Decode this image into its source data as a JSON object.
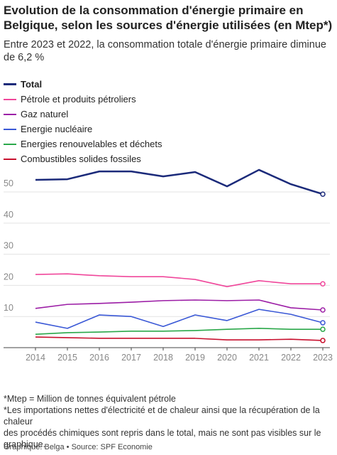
{
  "chart_data": {
    "type": "line",
    "title": "Evolution de la consommation d'énergie primaire en Belgique, selon les sources d'énergie utilisées (en Mtep*)",
    "subtitle": "Entre 2023 et 2022, la consommation totale d'énergie primaire diminue de 6,2 %",
    "x": [
      2014,
      2015,
      2016,
      2017,
      2018,
      2019,
      2020,
      2021,
      2022,
      2023
    ],
    "xlim": [
      2014,
      2023
    ],
    "xticks": [
      2014,
      2015,
      2016,
      2017,
      2018,
      2019,
      2020,
      2021,
      2022,
      2023
    ],
    "ylim": [
      0,
      58
    ],
    "yticks": [
      0,
      10,
      20,
      30,
      40,
      50
    ],
    "grid": true,
    "legend": "top-left",
    "series": [
      {
        "name": "Total",
        "color": "#1b2a7a",
        "values": [
          53.9,
          54.1,
          56.6,
          56.6,
          55.0,
          56.4,
          51.8,
          57.1,
          52.5,
          49.3
        ]
      },
      {
        "name": "Pétrole et produits pétroliers",
        "color": "#f0479b",
        "values": [
          23.5,
          23.7,
          23.1,
          22.8,
          22.8,
          21.9,
          19.6,
          21.5,
          20.5,
          20.5
        ]
      },
      {
        "name": "Gaz naturel",
        "color": "#9c1ea6",
        "values": [
          12.6,
          13.9,
          14.2,
          14.6,
          15.1,
          15.3,
          15.1,
          15.3,
          12.8,
          12.1
        ]
      },
      {
        "name": "Energie nucléaire",
        "color": "#3a58d6",
        "values": [
          8.2,
          6.2,
          10.5,
          10.0,
          6.8,
          10.5,
          8.7,
          12.3,
          10.7,
          8.0
        ]
      },
      {
        "name": "Energies renouvelables et déchets",
        "color": "#2ba84a",
        "values": [
          4.3,
          4.8,
          5.0,
          5.3,
          5.3,
          5.5,
          5.9,
          6.2,
          5.9,
          5.9
        ]
      },
      {
        "name": "Combustibles solides fossiles",
        "color": "#c8102e",
        "values": [
          3.4,
          3.2,
          3.0,
          3.0,
          3.0,
          3.0,
          2.5,
          2.5,
          2.7,
          2.3
        ]
      }
    ],
    "notes": [
      "*Mtep = Million de tonnes équivalent pétrole",
      "*Les importations nettes d'électricité et de chaleur ainsi que la récupération de la chaleur",
      "des procédés chimiques sont repris dans le total, mais ne sont pas visibles sur le graphique."
    ],
    "footer": "Graphique: Belga • Source: SPF Economie"
  }
}
